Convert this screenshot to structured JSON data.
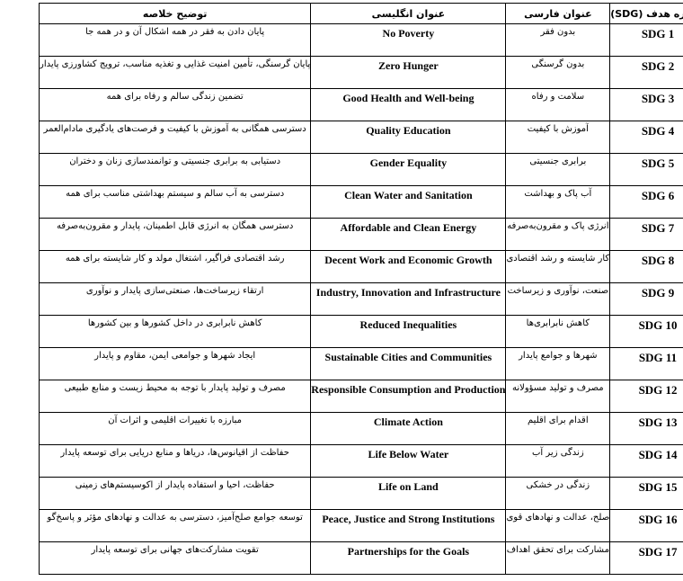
{
  "colors": {
    "background": "#ffffff",
    "border": "#000000",
    "text": "#000000"
  },
  "table": {
    "column_keys": [
      "sdg",
      "persian",
      "english",
      "summary"
    ],
    "headers": {
      "sdg": "شماره هدف (SDG)",
      "persian": "عنوان فارسی",
      "english": "عنوان انگلیسی",
      "summary": "توضیح خلاصه"
    },
    "rows": [
      {
        "sdg": "SDG 1",
        "persian": "بدون فقر",
        "english": "No Poverty",
        "summary": "پایان دادن به فقر در همه اشکال آن و در همه جا"
      },
      {
        "sdg": "SDG 2",
        "persian": "بدون گرسنگی",
        "english": "Zero Hunger",
        "summary": "پایان گرسنگی، تأمین امنیت غذایی و تغذیه مناسب، ترویج کشاورزی پایدار"
      },
      {
        "sdg": "SDG 3",
        "persian": "سلامت و رفاه",
        "english": "Good Health and Well-being",
        "summary": "تضمین زندگی سالم و رفاه برای همه"
      },
      {
        "sdg": "SDG 4",
        "persian": "آموزش با کیفیت",
        "english": "Quality Education",
        "summary": "دسترسی همگانی به آموزش با کیفیت و فرصت‌های یادگیری مادام‌العمر"
      },
      {
        "sdg": "SDG 5",
        "persian": "برابری جنسیتی",
        "english": "Gender Equality",
        "summary": "دستیابی به برابری جنسیتی و توانمندسازی زنان و دختران"
      },
      {
        "sdg": "SDG 6",
        "persian": "آب پاک و بهداشت",
        "english": "Clean Water and Sanitation",
        "summary": "دسترسی به آب سالم و سیستم بهداشتی مناسب برای همه"
      },
      {
        "sdg": "SDG 7",
        "persian": "انرژی پاک و مقرون‌به‌صرفه",
        "english": "Affordable and Clean Energy",
        "summary": "دسترسی همگان به انرژی قابل اطمینان، پایدار و مقرون‌به‌صرفه"
      },
      {
        "sdg": "SDG 8",
        "persian": "کار شایسته و رشد اقتصادی",
        "english": "Decent Work and Economic Growth",
        "summary": "رشد اقتصادی فراگیر، اشتغال مولد و کار شایسته برای همه"
      },
      {
        "sdg": "SDG 9",
        "persian": "صنعت، نوآوری و زیرساخت",
        "english": "Industry, Innovation and Infrastructure",
        "summary": "ارتقاء زیرساخت‌ها، صنعتی‌سازی پایدار و نوآوری"
      },
      {
        "sdg": "SDG 10",
        "persian": "کاهش نابرابری‌ها",
        "english": "Reduced Inequalities",
        "summary": "کاهش نابرابری در داخل کشورها و بین کشورها"
      },
      {
        "sdg": "SDG 11",
        "persian": "شهرها و جوامع پایدار",
        "english": "Sustainable Cities and Communities",
        "summary": "ایجاد شهرها و جوامعی ایمن، مقاوم و پایدار"
      },
      {
        "sdg": "SDG 12",
        "persian": "مصرف و تولید مسؤولانه",
        "english": "Responsible Consumption and Production",
        "summary": "مصرف و تولید پایدار با توجه به محیط زیست و منابع طبیعی"
      },
      {
        "sdg": "SDG 13",
        "persian": "اقدام برای اقلیم",
        "english": "Climate Action",
        "summary": "مبارزه با تغییرات اقلیمی و اثرات آن"
      },
      {
        "sdg": "SDG 14",
        "persian": "زندگی زیر آب",
        "english": "Life Below Water",
        "summary": "حفاظت از اقیانوس‌ها، دریاها و منابع دریایی برای توسعه پایدار"
      },
      {
        "sdg": "SDG 15",
        "persian": "زندگی در خشکی",
        "english": "Life on Land",
        "summary": "حفاظت، احیا و استفاده پایدار از اکوسیستم‌های زمینی"
      },
      {
        "sdg": "SDG 16",
        "persian": "صلح، عدالت و نهادهای قوی",
        "english": "Peace, Justice and Strong Institutions",
        "summary": "توسعه جوامع صلح‌آمیز، دسترسی به عدالت و نهادهای مؤثر و پاسخ‌گو"
      },
      {
        "sdg": "SDG 17",
        "persian": "مشارکت برای تحقق اهداف",
        "english": "Partnerships for the Goals",
        "summary": "تقویت مشارکت‌های جهانی برای توسعه پایدار"
      }
    ]
  }
}
